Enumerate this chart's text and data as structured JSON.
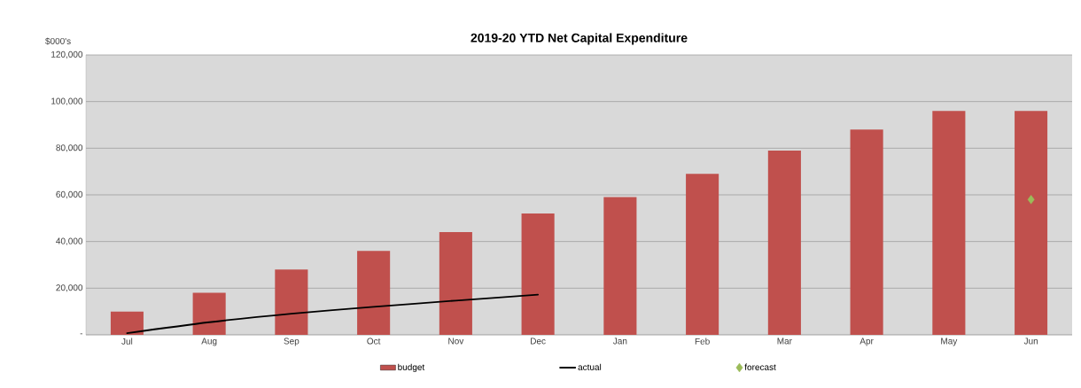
{
  "chart_data": {
    "type": "bar",
    "title": "2019-20 YTD Net Capital Expenditure",
    "ylabel": "$000's",
    "categories": [
      "Jul",
      "Aug",
      "Sep",
      "Oct",
      "Nov",
      "Dec",
      "Jan",
      "Feb",
      "Mar",
      "Apr",
      "May",
      "Jun"
    ],
    "series": [
      {
        "name": "budget",
        "color": "#c0504d",
        "values": [
          10000,
          18000,
          28000,
          36000,
          44000,
          52000,
          59000,
          69000,
          79000,
          88000,
          96000,
          96000
        ]
      },
      {
        "name": "actual",
        "type": "line",
        "color": "#000000",
        "marker": "none",
        "values": [
          700,
          5400,
          9100,
          12000,
          14700,
          17200,
          null,
          null,
          null,
          null,
          null,
          null
        ]
      },
      {
        "name": "forecast",
        "type": "scatter",
        "color": "#9bbb59",
        "marker": "diamond",
        "values": [
          null,
          null,
          null,
          null,
          null,
          null,
          null,
          null,
          null,
          null,
          null,
          58000
        ]
      }
    ],
    "ylim": [
      0,
      120000
    ],
    "yticks": [
      {
        "value": 0,
        "label": "-"
      },
      {
        "value": 20000,
        "label": "20,000"
      },
      {
        "value": 40000,
        "label": "40,000"
      },
      {
        "value": 60000,
        "label": "60,000"
      },
      {
        "value": 80000,
        "label": "80,000"
      },
      {
        "value": 100000,
        "label": "100,000"
      },
      {
        "value": 120000,
        "label": "120,000"
      }
    ],
    "grid": "y",
    "legend": "bottom"
  }
}
